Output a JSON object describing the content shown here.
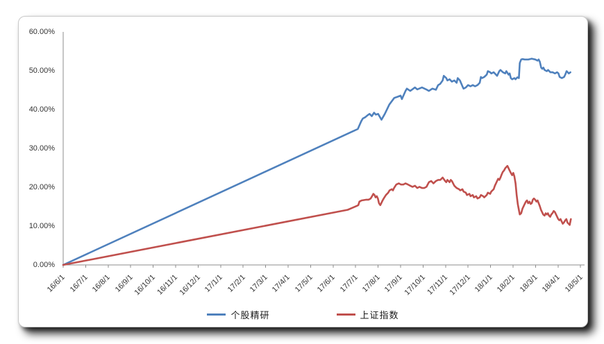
{
  "chart_data": {
    "type": "line",
    "title": "",
    "grid": false,
    "legend_position": "bottom-center",
    "x_axis": {
      "unit": "date (yy/m/d)",
      "note": "series x values are month indices: 0 = 16/6/1, 23 = 18/5/1",
      "labels": [
        "16/6/1",
        "16/7/1",
        "16/8/1",
        "16/9/1",
        "16/10/1",
        "16/11/1",
        "16/12/1",
        "17/1/1",
        "17/2/1",
        "17/3/1",
        "17/4/1",
        "17/5/1",
        "17/6/1",
        "17/7/1",
        "17/8/1",
        "17/9/1",
        "17/10/1",
        "17/11/1",
        "17/12/1",
        "18/1/1",
        "18/2/1",
        "18/3/1",
        "18/4/1",
        "18/5/1"
      ]
    },
    "y_axis": {
      "min": 0,
      "max": 60,
      "step": 10,
      "unit": "%",
      "labels": [
        "0.00%",
        "10.00%",
        "20.00%",
        "30.00%",
        "40.00%",
        "50.00%",
        "60.00%"
      ]
    },
    "series": [
      {
        "name": "个股精研",
        "color": "#4F81BD",
        "points": [
          [
            0,
            0
          ],
          [
            12.65,
            33.8
          ],
          [
            13.1,
            35.0
          ],
          [
            13.25,
            37.0
          ],
          [
            13.32,
            37.7
          ],
          [
            13.42,
            38.0
          ],
          [
            13.55,
            38.6
          ],
          [
            13.62,
            38.9
          ],
          [
            13.72,
            38.3
          ],
          [
            13.82,
            39.2
          ],
          [
            13.9,
            38.7
          ],
          [
            14.0,
            38.9
          ],
          [
            14.15,
            37.4
          ],
          [
            14.3,
            38.9
          ],
          [
            14.5,
            41.3
          ],
          [
            14.72,
            43.0
          ],
          [
            14.87,
            43.3
          ],
          [
            15.0,
            43.6
          ],
          [
            15.06,
            42.7
          ],
          [
            15.22,
            44.8
          ],
          [
            15.28,
            45.4
          ],
          [
            15.43,
            44.8
          ],
          [
            15.64,
            45.7
          ],
          [
            15.74,
            45.2
          ],
          [
            15.95,
            45.7
          ],
          [
            16.14,
            45.2
          ],
          [
            16.26,
            44.8
          ],
          [
            16.41,
            45.4
          ],
          [
            16.57,
            45.1
          ],
          [
            16.67,
            46.3
          ],
          [
            16.76,
            46.6
          ],
          [
            16.87,
            47.5
          ],
          [
            16.92,
            48.7
          ],
          [
            17.03,
            48.1
          ],
          [
            17.08,
            47.5
          ],
          [
            17.18,
            47.8
          ],
          [
            17.28,
            47.2
          ],
          [
            17.39,
            47.5
          ],
          [
            17.49,
            46.9
          ],
          [
            17.54,
            48.1
          ],
          [
            17.64,
            47.5
          ],
          [
            17.75,
            46.0
          ],
          [
            17.8,
            45.4
          ],
          [
            17.9,
            45.7
          ],
          [
            18.0,
            46.3
          ],
          [
            18.11,
            46.0
          ],
          [
            18.21,
            46.3
          ],
          [
            18.31,
            46.0
          ],
          [
            18.42,
            46.3
          ],
          [
            18.52,
            46.9
          ],
          [
            18.57,
            48.4
          ],
          [
            18.62,
            48.1
          ],
          [
            18.72,
            48.4
          ],
          [
            18.83,
            49.0
          ],
          [
            18.88,
            49.9
          ],
          [
            18.98,
            49.6
          ],
          [
            19.03,
            49.3
          ],
          [
            19.14,
            49.6
          ],
          [
            19.24,
            49.0
          ],
          [
            19.29,
            48.7
          ],
          [
            19.34,
            49.3
          ],
          [
            19.39,
            49.9
          ],
          [
            19.44,
            50.2
          ],
          [
            19.55,
            49.6
          ],
          [
            19.65,
            49.3
          ],
          [
            19.7,
            49.9
          ],
          [
            19.8,
            49.0
          ],
          [
            19.85,
            49.3
          ],
          [
            19.9,
            48.1
          ],
          [
            19.96,
            47.8
          ],
          [
            20.06,
            48.1
          ],
          [
            20.11,
            47.8
          ],
          [
            20.19,
            48.3
          ],
          [
            20.26,
            48.1
          ],
          [
            20.3,
            52.0
          ],
          [
            20.36,
            52.9
          ],
          [
            20.42,
            53.0
          ],
          [
            20.52,
            52.9
          ],
          [
            20.68,
            52.9
          ],
          [
            20.83,
            53.1
          ],
          [
            20.99,
            52.9
          ],
          [
            21.09,
            52.6
          ],
          [
            21.14,
            52.9
          ],
          [
            21.19,
            52.3
          ],
          [
            21.25,
            50.8
          ],
          [
            21.3,
            50.5
          ],
          [
            21.35,
            50.8
          ],
          [
            21.4,
            50.2
          ],
          [
            21.5,
            49.9
          ],
          [
            21.56,
            50.2
          ],
          [
            21.66,
            49.6
          ],
          [
            21.76,
            49.6
          ],
          [
            21.86,
            49.3
          ],
          [
            21.96,
            49.6
          ],
          [
            22.02,
            49.3
          ],
          [
            22.07,
            48.4
          ],
          [
            22.17,
            48.1
          ],
          [
            22.27,
            48.4
          ],
          [
            22.32,
            49.0
          ],
          [
            22.38,
            49.9
          ],
          [
            22.43,
            49.6
          ],
          [
            22.48,
            49.3
          ],
          [
            22.55,
            49.6
          ]
        ]
      },
      {
        "name": "上证指数",
        "color": "#C0504D",
        "points": [
          [
            0,
            0
          ],
          [
            12.65,
            14.2
          ],
          [
            13.05,
            15.2
          ],
          [
            13.12,
            15.4
          ],
          [
            13.17,
            16.3
          ],
          [
            13.27,
            16.6
          ],
          [
            13.48,
            16.8
          ],
          [
            13.58,
            16.8
          ],
          [
            13.67,
            17.1
          ],
          [
            13.73,
            17.7
          ],
          [
            13.79,
            18.3
          ],
          [
            13.84,
            18.0
          ],
          [
            13.89,
            17.4
          ],
          [
            13.94,
            17.7
          ],
          [
            13.99,
            17.1
          ],
          [
            14.04,
            15.9
          ],
          [
            14.1,
            15.4
          ],
          [
            14.2,
            16.6
          ],
          [
            14.25,
            17.1
          ],
          [
            14.35,
            18.0
          ],
          [
            14.45,
            18.6
          ],
          [
            14.51,
            19.2
          ],
          [
            14.61,
            19.5
          ],
          [
            14.66,
            19.2
          ],
          [
            14.71,
            19.8
          ],
          [
            14.81,
            20.7
          ],
          [
            14.92,
            21.0
          ],
          [
            15.02,
            20.7
          ],
          [
            15.12,
            20.7
          ],
          [
            15.22,
            21.0
          ],
          [
            15.33,
            20.7
          ],
          [
            15.43,
            20.4
          ],
          [
            15.53,
            20.1
          ],
          [
            15.64,
            20.4
          ],
          [
            15.74,
            19.8
          ],
          [
            15.84,
            20.1
          ],
          [
            15.95,
            19.8
          ],
          [
            16.05,
            19.8
          ],
          [
            16.15,
            20.1
          ],
          [
            16.26,
            21.3
          ],
          [
            16.36,
            21.6
          ],
          [
            16.46,
            21.0
          ],
          [
            16.57,
            21.6
          ],
          [
            16.67,
            21.9
          ],
          [
            16.77,
            21.9
          ],
          [
            16.87,
            22.5
          ],
          [
            16.98,
            21.6
          ],
          [
            17.03,
            21.3
          ],
          [
            17.08,
            21.9
          ],
          [
            17.18,
            21.3
          ],
          [
            17.23,
            21.9
          ],
          [
            17.28,
            21.6
          ],
          [
            17.39,
            20.4
          ],
          [
            17.49,
            19.8
          ],
          [
            17.6,
            19.5
          ],
          [
            17.65,
            19.2
          ],
          [
            17.75,
            19.5
          ],
          [
            17.8,
            18.9
          ],
          [
            17.9,
            18.6
          ],
          [
            17.95,
            18.0
          ],
          [
            18.06,
            18.3
          ],
          [
            18.11,
            17.7
          ],
          [
            18.21,
            18.0
          ],
          [
            18.26,
            17.4
          ],
          [
            18.36,
            17.7
          ],
          [
            18.42,
            17.1
          ],
          [
            18.52,
            17.4
          ],
          [
            18.57,
            18.0
          ],
          [
            18.67,
            17.7
          ],
          [
            18.72,
            17.4
          ],
          [
            18.83,
            18.0
          ],
          [
            18.88,
            18.6
          ],
          [
            18.98,
            18.3
          ],
          [
            19.03,
            18.9
          ],
          [
            19.14,
            19.5
          ],
          [
            19.19,
            20.4
          ],
          [
            19.24,
            21.0
          ],
          [
            19.29,
            21.6
          ],
          [
            19.34,
            22.2
          ],
          [
            19.39,
            21.9
          ],
          [
            19.44,
            22.5
          ],
          [
            19.5,
            23.4
          ],
          [
            19.55,
            24.0
          ],
          [
            19.6,
            24.3
          ],
          [
            19.65,
            24.9
          ],
          [
            19.7,
            25.2
          ],
          [
            19.75,
            25.5
          ],
          [
            19.8,
            24.9
          ],
          [
            19.85,
            24.3
          ],
          [
            19.9,
            23.7
          ],
          [
            19.96,
            23.1
          ],
          [
            20.01,
            23.7
          ],
          [
            20.06,
            22.8
          ],
          [
            20.11,
            21.0
          ],
          [
            20.16,
            18.0
          ],
          [
            20.21,
            15.7
          ],
          [
            20.27,
            13.9
          ],
          [
            20.3,
            13.0
          ],
          [
            20.36,
            13.3
          ],
          [
            20.42,
            14.5
          ],
          [
            20.47,
            15.1
          ],
          [
            20.52,
            15.7
          ],
          [
            20.57,
            16.3
          ],
          [
            20.62,
            16.6
          ],
          [
            20.67,
            15.9
          ],
          [
            20.73,
            16.3
          ],
          [
            20.78,
            15.7
          ],
          [
            20.83,
            15.9
          ],
          [
            20.88,
            16.8
          ],
          [
            20.93,
            17.1
          ],
          [
            20.98,
            16.8
          ],
          [
            21.04,
            16.3
          ],
          [
            21.09,
            16.6
          ],
          [
            21.14,
            15.9
          ],
          [
            21.19,
            15.1
          ],
          [
            21.24,
            14.2
          ],
          [
            21.29,
            13.6
          ],
          [
            21.34,
            13.0
          ],
          [
            21.4,
            12.7
          ],
          [
            21.45,
            13.3
          ],
          [
            21.5,
            13.0
          ],
          [
            21.55,
            13.3
          ],
          [
            21.6,
            12.7
          ],
          [
            21.65,
            12.4
          ],
          [
            21.7,
            13.0
          ],
          [
            21.75,
            13.3
          ],
          [
            21.81,
            13.9
          ],
          [
            21.86,
            13.6
          ],
          [
            21.91,
            13.0
          ],
          [
            21.96,
            12.4
          ],
          [
            22.01,
            11.8
          ],
          [
            22.06,
            11.5
          ],
          [
            22.11,
            11.8
          ],
          [
            22.16,
            11.2
          ],
          [
            22.21,
            10.6
          ],
          [
            22.26,
            10.9
          ],
          [
            22.32,
            11.5
          ],
          [
            22.37,
            11.8
          ],
          [
            22.42,
            10.9
          ],
          [
            22.47,
            10.6
          ],
          [
            22.52,
            10.3
          ],
          [
            22.55,
            11.2
          ],
          [
            22.57,
            11.8
          ]
        ]
      }
    ],
    "colors": {
      "axis_line": "#8C8C8C",
      "tick_label": "#333333",
      "frame_border": "#C9C9C9",
      "background": "#FFFFFF"
    }
  }
}
